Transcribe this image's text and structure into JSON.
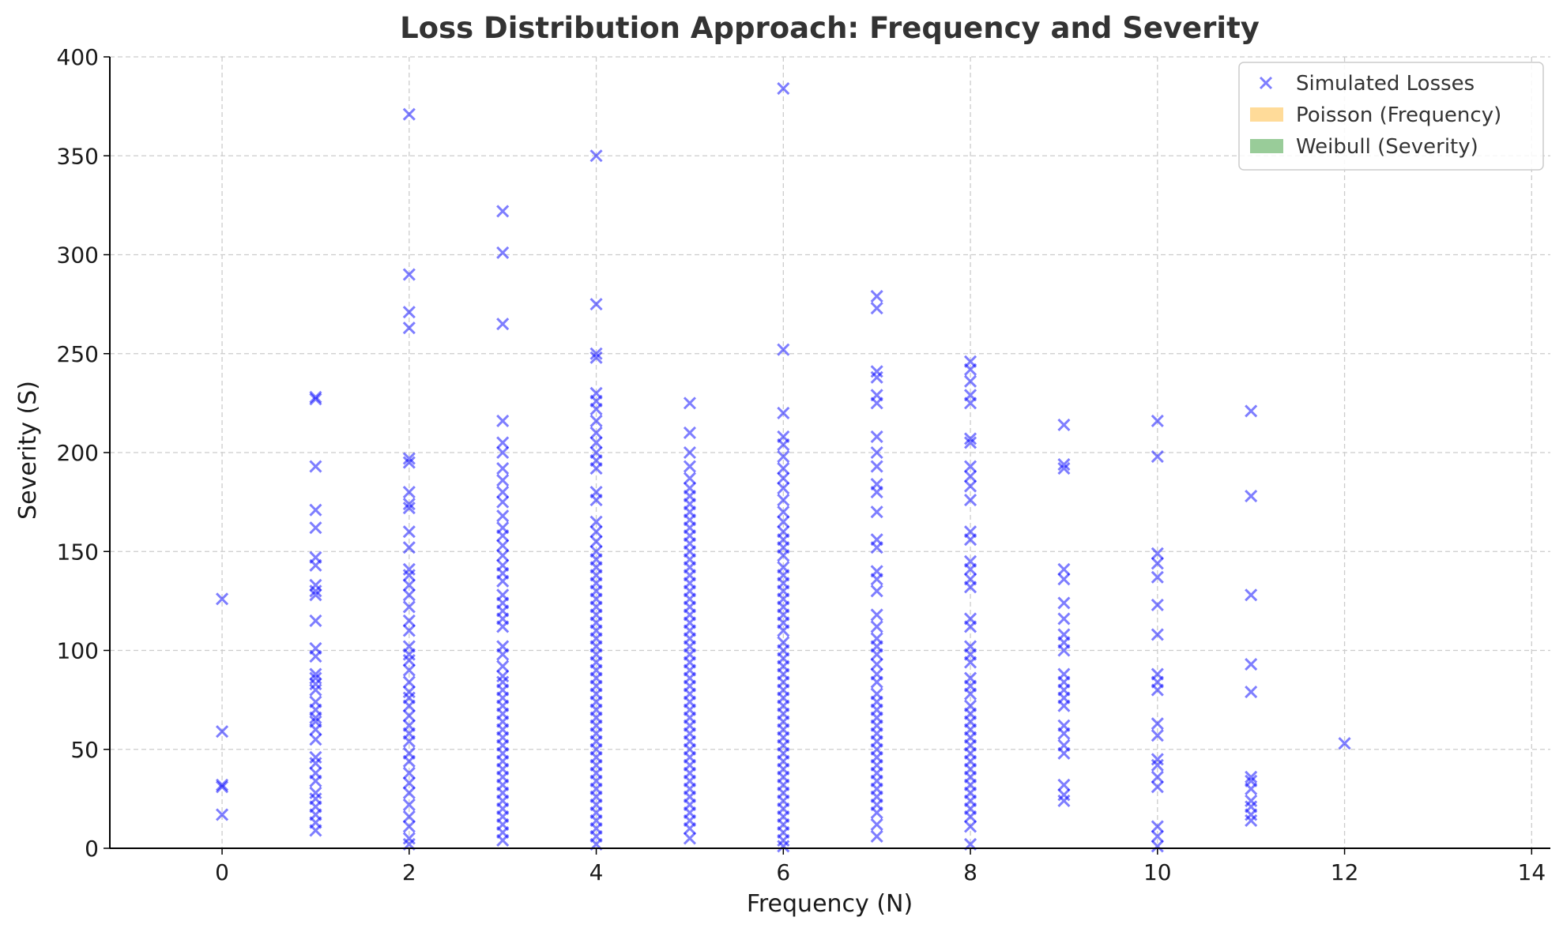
{
  "chart_data": {
    "type": "scatter",
    "title": "Loss Distribution Approach: Frequency and Severity",
    "xlabel": "Frequency (N)",
    "ylabel": "Severity (S)",
    "xlim": [
      -1.2,
      14.2
    ],
    "ylim": [
      0,
      400
    ],
    "xticks": [
      0,
      2,
      4,
      6,
      8,
      10,
      12,
      14
    ],
    "yticks": [
      0,
      50,
      100,
      150,
      200,
      250,
      300,
      350,
      400
    ],
    "grid": true,
    "legend_position": "top-right",
    "legend": [
      {
        "label": "Simulated Losses",
        "kind": "marker-x",
        "color": "#0000ff"
      },
      {
        "label": "Poisson (Frequency)",
        "kind": "patch",
        "color": "#ffa500"
      },
      {
        "label": "Weibull (Severity)",
        "kind": "patch",
        "color": "#008000"
      }
    ],
    "series": [
      {
        "name": "Simulated Losses",
        "marker": "x",
        "color": "#0000ff",
        "opacity": 0.5,
        "points_by_x": [
          {
            "x": 0,
            "y": [
              126,
              59,
              32,
              31,
              17
            ]
          },
          {
            "x": 1,
            "y": [
              228,
              227,
              193,
              171,
              162,
              147,
              143,
              133,
              130,
              128,
              115,
              101,
              97,
              88,
              86,
              83,
              80,
              74,
              70,
              66,
              64,
              60,
              55,
              46,
              43,
              38,
              34,
              28,
              25,
              21,
              17,
              13,
              9
            ]
          },
          {
            "x": 2,
            "y": [
              371,
              290,
              271,
              263,
              197,
              195,
              180,
              174,
              172,
              160,
              152,
              141,
              138,
              133,
              128,
              122,
              115,
              110,
              102,
              98,
              95,
              90,
              84,
              79,
              76,
              72,
              67,
              62,
              58,
              54,
              48,
              44,
              38,
              33,
              28,
              22,
              16,
              11,
              5,
              2
            ]
          },
          {
            "x": 3,
            "y": [
              322,
              301,
              265,
              216,
              205,
              200,
              192,
              186,
              180,
              175,
              168,
              162,
              158,
              153,
              148,
              143,
              139,
              135,
              128,
              124,
              120,
              116,
              112,
              102,
              98,
              92,
              87,
              84,
              80,
              76,
              72,
              68,
              64,
              60,
              56,
              52,
              48,
              44,
              40,
              36,
              32,
              28,
              24,
              20,
              16,
              12,
              8,
              4
            ]
          },
          {
            "x": 4,
            "y": [
              350,
              275,
              250,
              248,
              230,
              226,
              222,
              216,
              210,
              205,
              200,
              196,
              192,
              180,
              176,
              165,
              160,
              155,
              150,
              146,
              142,
              138,
              134,
              130,
              126,
              122,
              118,
              114,
              110,
              106,
              102,
              98,
              94,
              90,
              86,
              82,
              78,
              74,
              70,
              66,
              62,
              58,
              54,
              50,
              46,
              42,
              38,
              34,
              30,
              26,
              22,
              18,
              14,
              10,
              6,
              2
            ]
          },
          {
            "x": 5,
            "y": [
              225,
              210,
              200,
              193,
              187,
              182,
              178,
              174,
              170,
              166,
              162,
              158,
              154,
              150,
              146,
              142,
              138,
              134,
              130,
              126,
              122,
              118,
              114,
              110,
              106,
              102,
              98,
              94,
              90,
              86,
              82,
              78,
              74,
              70,
              66,
              62,
              58,
              54,
              50,
              46,
              42,
              38,
              34,
              30,
              26,
              22,
              18,
              14,
              10,
              5
            ]
          },
          {
            "x": 6,
            "y": [
              384,
              252,
              220,
              208,
              204,
              198,
              192,
              187,
              182,
              176,
              170,
              165,
              160,
              156,
              152,
              148,
              142,
              138,
              134,
              130,
              126,
              122,
              118,
              114,
              110,
              104,
              100,
              96,
              92,
              88,
              84,
              80,
              76,
              72,
              68,
              64,
              60,
              56,
              52,
              48,
              44,
              40,
              36,
              32,
              28,
              24,
              20,
              16,
              12,
              8,
              4,
              1
            ]
          },
          {
            "x": 7,
            "y": [
              279,
              273,
              241,
              238,
              229,
              225,
              208,
              200,
              193,
              184,
              180,
              170,
              156,
              152,
              140,
              136,
              130,
              118,
              112,
              106,
              102,
              98,
              93,
              88,
              84,
              78,
              74,
              70,
              66,
              62,
              58,
              54,
              50,
              46,
              42,
              38,
              34,
              30,
              26,
              22,
              18,
              12,
              6
            ]
          },
          {
            "x": 8,
            "y": [
              246,
              242,
              236,
              229,
              225,
              207,
              205,
              193,
              188,
              183,
              176,
              160,
              156,
              145,
              141,
              136,
              132,
              116,
              112,
              102,
              98,
              94,
              86,
              82,
              78,
              72,
              68,
              64,
              60,
              56,
              52,
              48,
              44,
              40,
              36,
              32,
              28,
              24,
              20,
              16,
              11,
              2
            ]
          },
          {
            "x": 9,
            "y": [
              214,
              194,
              192,
              141,
              136,
              124,
              116,
              108,
              104,
              100,
              88,
              84,
              80,
              76,
              72,
              62,
              58,
              52,
              48,
              32,
              27,
              24
            ]
          },
          {
            "x": 10,
            "y": [
              216,
              198,
              149,
              144,
              137,
              123,
              108,
              88,
              84,
              80,
              63,
              57,
              45,
              42,
              36,
              31,
              11,
              6,
              1
            ]
          },
          {
            "x": 11,
            "y": [
              221,
              178,
              128,
              93,
              79,
              36,
              34,
              30,
              24,
              21,
              17,
              14
            ]
          },
          {
            "x": 12,
            "y": [
              53
            ]
          }
        ]
      }
    ]
  }
}
